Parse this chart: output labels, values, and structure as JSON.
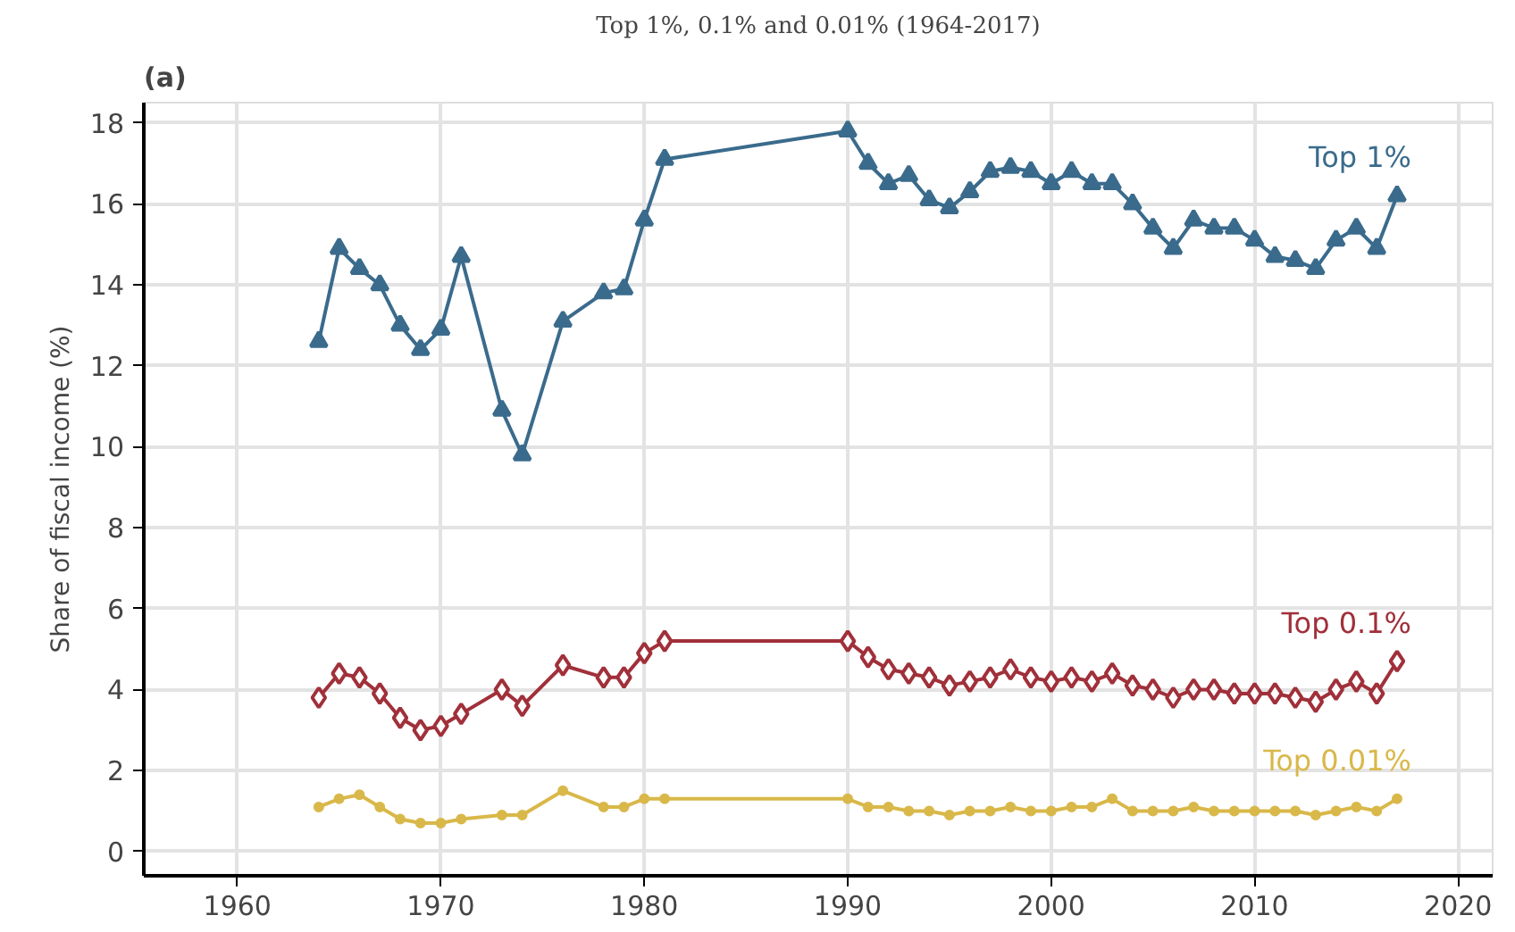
{
  "chart_data": {
    "type": "line",
    "title": "Top 1%, 0.1% and 0.01% (1964-2017)",
    "ylabel": "Share of fiscal income (%)",
    "annotations": [
      "(a)"
    ],
    "x": [
      1964,
      1965,
      1966,
      1967,
      1968,
      1969,
      1970,
      1971,
      1973,
      1974,
      1976,
      1978,
      1979,
      1980,
      1981,
      1990,
      1991,
      1992,
      1993,
      1994,
      1995,
      1996,
      1997,
      1998,
      1999,
      2000,
      2001,
      2002,
      2003,
      2004,
      2005,
      2006,
      2007,
      2008,
      2009,
      2010,
      2011,
      2012,
      2013,
      2014,
      2015,
      2016,
      2017
    ],
    "series": [
      {
        "name": "Top 1%",
        "color": "#3a6b8c",
        "marker": "triangle",
        "values": [
          12.6,
          14.9,
          14.4,
          14.0,
          13.0,
          12.4,
          12.9,
          14.7,
          10.9,
          9.8,
          13.1,
          13.8,
          13.9,
          15.6,
          17.1,
          17.8,
          17.0,
          16.5,
          16.7,
          16.1,
          15.9,
          16.3,
          16.8,
          16.9,
          16.8,
          16.5,
          16.8,
          16.5,
          16.5,
          16.0,
          15.4,
          14.9,
          15.6,
          15.4,
          15.4,
          15.1,
          14.7,
          14.6,
          14.4,
          15.1,
          15.4,
          14.9,
          16.2
        ]
      },
      {
        "name": "Top 0.1%",
        "color": "#a0303a",
        "marker": "diamond",
        "values": [
          3.8,
          4.4,
          4.3,
          3.9,
          3.3,
          3.0,
          3.1,
          3.4,
          4.0,
          3.6,
          4.6,
          4.3,
          4.3,
          4.9,
          5.2,
          5.2,
          4.8,
          4.5,
          4.4,
          4.3,
          4.1,
          4.2,
          4.3,
          4.5,
          4.3,
          4.2,
          4.3,
          4.2,
          4.4,
          4.1,
          4.0,
          3.8,
          4.0,
          4.0,
          3.9,
          3.9,
          3.9,
          3.8,
          3.7,
          4.0,
          4.2,
          3.9,
          4.7
        ]
      },
      {
        "name": "Top 0.01%",
        "color": "#d9b84a",
        "marker": "circle",
        "values": [
          1.1,
          1.3,
          1.4,
          1.1,
          0.8,
          0.7,
          0.7,
          0.8,
          0.9,
          0.9,
          1.5,
          1.1,
          1.1,
          1.3,
          1.3,
          1.3,
          1.1,
          1.1,
          1.0,
          1.0,
          0.9,
          1.0,
          1.0,
          1.1,
          1.0,
          1.0,
          1.1,
          1.1,
          1.3,
          1.0,
          1.0,
          1.0,
          1.1,
          1.0,
          1.0,
          1.0,
          1.0,
          1.0,
          0.9,
          1.0,
          1.1,
          1.0,
          1.3
        ]
      }
    ],
    "xlim": [
      1955.4,
      2021.7
    ],
    "ylim": [
      -0.6,
      18.5
    ],
    "xticks": [
      1960,
      1970,
      1980,
      1990,
      2000,
      2010,
      2020
    ],
    "yticks": [
      0,
      2,
      4,
      6,
      8,
      10,
      12,
      14,
      16,
      18
    ],
    "grid": true,
    "line_style": "solid"
  }
}
